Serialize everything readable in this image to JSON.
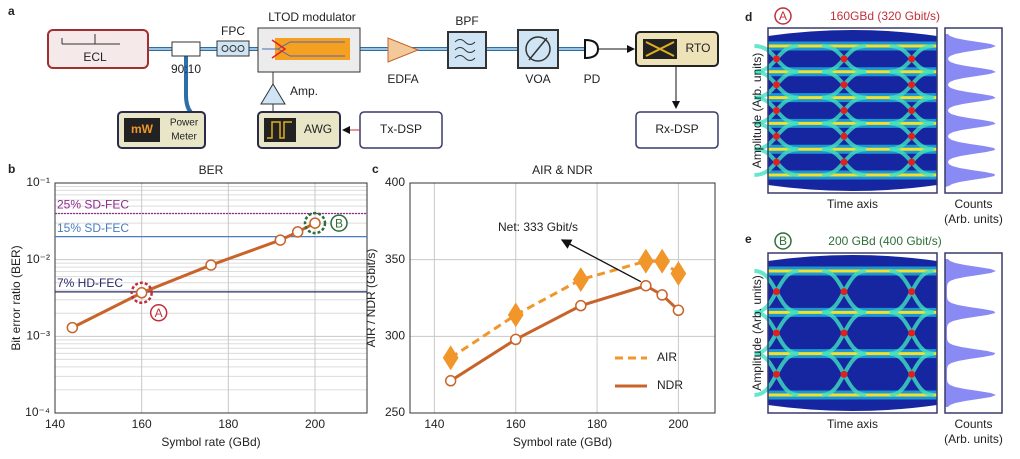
{
  "panel_labels": [
    "a",
    "b",
    "c",
    "d",
    "e"
  ],
  "diagram": {
    "ecl": "ECL",
    "coupler": "90:10",
    "fpc": "FPC",
    "modulator": "LTOD modulator",
    "amp": "Amp.",
    "edfa": "EDFA",
    "bpf": "BPF",
    "voa": "VOA",
    "pd": "PD",
    "rto": "RTO",
    "rx": "Rx-DSP",
    "tx": "Tx-DSP",
    "awg": "AWG",
    "meter_unit": "mW",
    "meter": [
      "Power",
      "Meter"
    ]
  },
  "chart_data": [
    {
      "type": "line",
      "title": "BER",
      "x_label": "Symbol rate (GBd)",
      "y_label": "Bit error ratio (BER)",
      "log_y": true,
      "grid": true,
      "x": [
        144,
        160,
        176,
        192,
        196,
        200
      ],
      "values": [
        0.0013,
        0.0037,
        0.0085,
        0.018,
        0.023,
        0.03
      ],
      "color": "#c8642a",
      "xlim": [
        140,
        212
      ],
      "xticks": [
        140,
        160,
        180,
        200
      ],
      "ylim": [
        0.0001,
        0.1
      ],
      "yticks": [
        {
          "value": 0.0001,
          "label": "10⁻⁴"
        },
        {
          "value": 0.001,
          "label": "10⁻³"
        },
        {
          "value": 0.01,
          "label": "10⁻²"
        },
        {
          "value": 0.1,
          "label": "10⁻¹"
        }
      ],
      "thresholds": [
        {
          "label": "25% SD-FEC",
          "value": 0.04,
          "color": "#8e2c8e"
        },
        {
          "label": "15% SD-FEC",
          "value": 0.02,
          "color": "#4a7ec0"
        },
        {
          "label": "7% HD-FEC",
          "value": 0.0038,
          "color": "#2a2a6a"
        }
      ],
      "callouts": [
        {
          "label": "A",
          "x": 160,
          "y": 0.0037,
          "color": "#c0303a"
        },
        {
          "label": "B",
          "x": 200,
          "y": 0.03,
          "color": "#2e6e38"
        }
      ]
    },
    {
      "type": "line",
      "title": "AIR & NDR",
      "x_label": "Symbol rate (GBd)",
      "y_label": "AIR / NDR (Gbit/s)",
      "grid": true,
      "legend": "lower right",
      "x": [
        144,
        160,
        176,
        192,
        196,
        200
      ],
      "series": [
        {
          "name": "AIR",
          "color": "#f0962a",
          "dashed": true,
          "marker": "diamond",
          "values": [
            286,
            314,
            337,
            349,
            349,
            341
          ]
        },
        {
          "name": "NDR",
          "color": "#c8642a",
          "dashed": false,
          "marker": "circle",
          "values": [
            271,
            298,
            320,
            333,
            327,
            317
          ]
        }
      ],
      "xlim": [
        134,
        209
      ],
      "xticks": [
        140,
        160,
        180,
        200
      ],
      "ylim": [
        250,
        400
      ],
      "yticks": [
        250,
        300,
        350,
        400
      ],
      "annotation": "Net: 333 Gbit/s"
    }
  ],
  "eyes": [
    {
      "marker": "A",
      "marker_color": "#c0303a",
      "title": "160GBd (320 Gbit/s)",
      "y_label": "Amplitude (Arb. units)",
      "x_label": "Time axis",
      "counts_label": [
        "Counts",
        "(Arb. units)"
      ]
    },
    {
      "marker": "B",
      "marker_color": "#2e6e38",
      "title": "200 GBd (400 Gbit/s)",
      "y_label": "Amplitude (Arb. units)",
      "x_label": "Time axis",
      "counts_label": [
        "Counts",
        "(Arb. units)"
      ]
    }
  ]
}
